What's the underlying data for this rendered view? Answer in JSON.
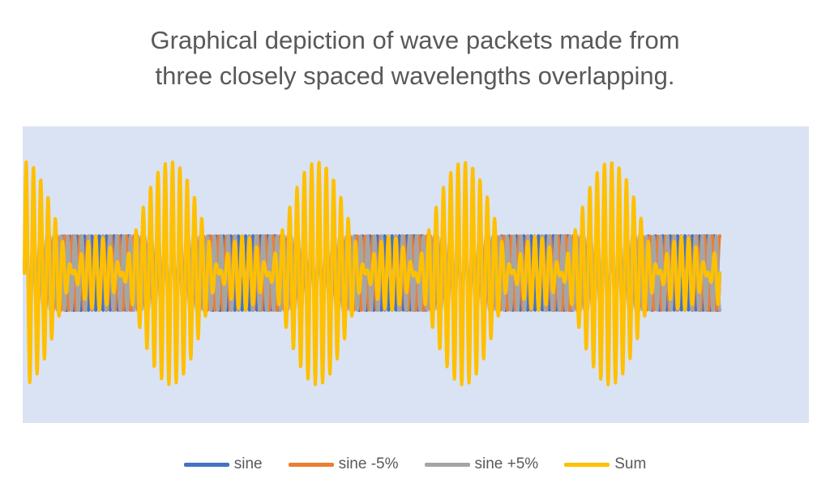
{
  "chart_data": {
    "type": "line",
    "title": "Graphical depiction of wave packets made from three closely spaced wavelengths overlapping.",
    "title_lines": [
      "Graphical depiction of wave packets made from",
      "three closely spaced wavelengths overlapping."
    ],
    "xlabel": "",
    "ylabel": "",
    "x_range": [
      0,
      95
    ],
    "ylim": [
      -3.2,
      3.2
    ],
    "grid": false,
    "axes_visible": false,
    "legend_position": "bottom",
    "plot_background": "#dae3f3",
    "series": [
      {
        "name": "sine",
        "color": "#4472c4",
        "amplitude": 1,
        "frequency_rel": 1.0
      },
      {
        "name": "sine -5%",
        "color": "#ed7d31",
        "amplitude": 1,
        "frequency_rel": 0.95
      },
      {
        "name": "sine +5%",
        "color": "#a5a5a5",
        "amplitude": 1,
        "frequency_rel": 1.05
      },
      {
        "name": "Sum",
        "color": "#ffc000",
        "amplitude": 3,
        "formula": "sine + sine -5% + sine +5%"
      }
    ]
  }
}
